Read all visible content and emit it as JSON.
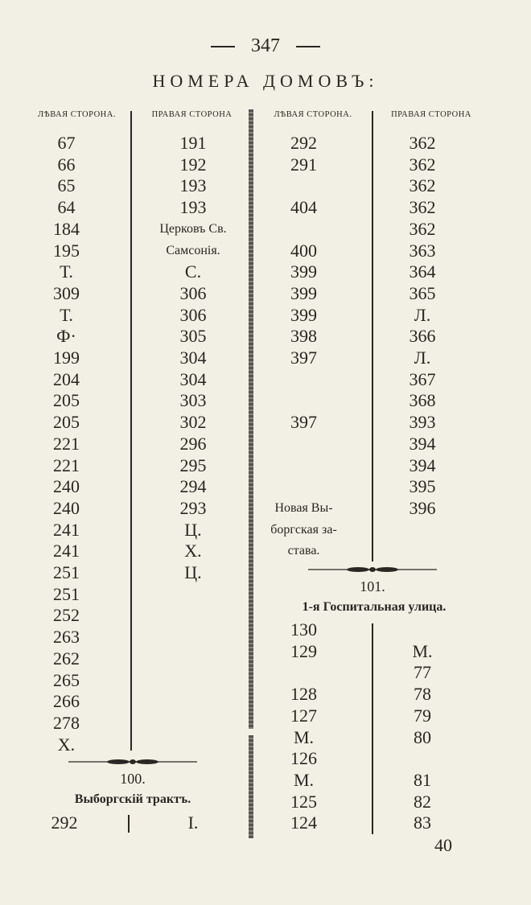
{
  "page": {
    "number": "347",
    "title": "НОМЕРА ДОМОВЪ:",
    "footer_signature": "40"
  },
  "headers": [
    "ЛѢВАЯ СТОРОНА.",
    "ПРАВАЯ СТОРОНА",
    "ЛѢВАЯ СТОРОНА.",
    "ПРАВАЯ СТОРОНА"
  ],
  "block_left": {
    "left_side": [
      "67",
      "66",
      "65",
      "64",
      "184",
      "195",
      "Т.",
      "309",
      "Т.",
      "Ф·",
      "199",
      "204",
      "205",
      "205",
      "221",
      "221",
      "240",
      "240",
      "241",
      "241",
      "251",
      "251",
      "252",
      "263",
      "262",
      "265",
      "266",
      "278",
      "Х."
    ],
    "right_side": [
      "191",
      "192",
      "193",
      "193",
      "Церковъ Св.",
      "Самсонія.",
      "С.",
      "306",
      "306",
      "305",
      "304",
      "304",
      "303",
      "302",
      "296",
      "295",
      "294",
      "293",
      "Ц.",
      "Х.",
      "Ц."
    ]
  },
  "block_right": {
    "left_side": [
      "292",
      "291",
      "",
      "404",
      "",
      "400",
      "399",
      "399",
      "399",
      "398",
      "397",
      "",
      "",
      "397",
      "",
      "",
      "",
      "Новая Вы-",
      "боргская за-",
      "става."
    ],
    "right_side": [
      "362",
      "362",
      "362",
      "362",
      "362",
      "363",
      "364",
      "365",
      "Л.",
      "366",
      "Л.",
      "367",
      "368",
      "393",
      "394",
      "394",
      "395",
      "396"
    ]
  },
  "section_101": {
    "number": "101.",
    "street": "1-я Госпитальная улица.",
    "left_side": [
      "130",
      "129",
      "",
      "128",
      "127",
      "М.",
      "126",
      "М.",
      "125",
      "124"
    ],
    "right_side": [
      "",
      "М.",
      "77",
      "78",
      "79",
      "80",
      "",
      "81",
      "82",
      "83"
    ]
  },
  "section_100": {
    "number": "100.",
    "street": "Выборгскій трактъ.",
    "left_side": [
      "292"
    ],
    "right_side": [
      "I."
    ]
  }
}
